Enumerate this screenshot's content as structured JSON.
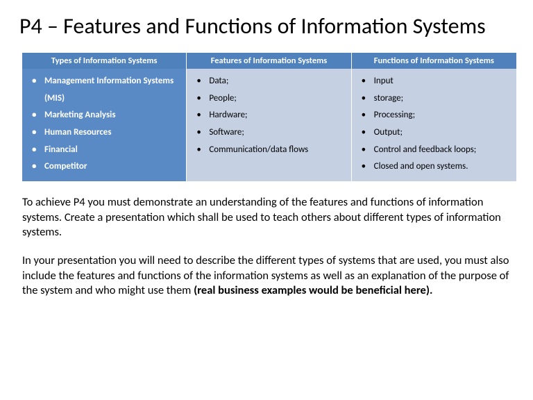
{
  "title": "P4 – Features and Functions of Information Systems",
  "table": {
    "columns": [
      {
        "header": "Types of Information Systems",
        "items": [
          "Management Information Systems (MIS)",
          "Marketing Analysis",
          "Human Resources",
          "Financial",
          "Competitor"
        ]
      },
      {
        "header": "Features of Information Systems",
        "items": [
          "Data;",
          "People;",
          "Hardware;",
          "Software;",
          "Communication/data flows"
        ]
      },
      {
        "header": "Functions of Information Systems",
        "items": [
          "Input",
          "storage;",
          "Processing;",
          "Output;",
          "Control and feedback loops;",
          "Closed and open systems."
        ]
      }
    ],
    "header_bg": "#4f81bd",
    "header_fg": "#ffffff",
    "col1_bg": "#5a8ac6",
    "col1_fg": "#ffffff",
    "col23_bg": "#c5d0e2",
    "col23_fg": "#000000",
    "font_size_header": 12.5,
    "font_size_body": 13
  },
  "paragraphs": {
    "p1": "To achieve P4 you must demonstrate an understanding of the features and functions of information systems. Create a presentation which shall be used to teach others about different types of information systems.",
    "p2_normal": "In your presentation you will need to describe the different types of systems that are used, you must also include the features and functions of the information systems as well as an explanation of the purpose of the system and who might use them ",
    "p2_bold": "(real business examples would be beneficial here)."
  },
  "colors": {
    "page_bg": "#ffffff",
    "text": "#000000"
  },
  "typography": {
    "title_fontsize": 32,
    "body_fontsize": 16.5,
    "font_family": "Calibri"
  }
}
